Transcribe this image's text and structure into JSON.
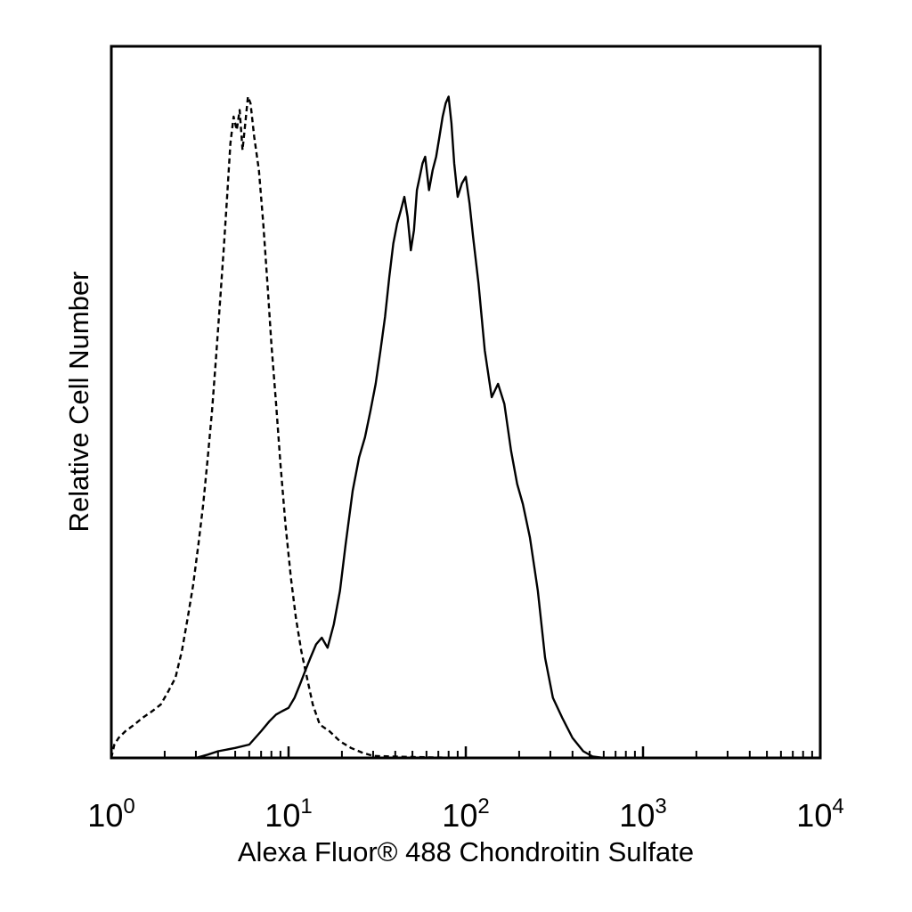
{
  "chart_data": {
    "type": "line",
    "title": "",
    "xlabel": "Alexa Fluor® 488 Chondroitin Sulfate",
    "ylabel": "Relative Cell Number",
    "x_scale": "log",
    "xlim": [
      1,
      10000
    ],
    "ylim": [
      0,
      100
    ],
    "grid": false,
    "legend": "none",
    "x_ticks": [
      {
        "value": 1,
        "base": "10",
        "exp": "0"
      },
      {
        "value": 10,
        "base": "10",
        "exp": "1"
      },
      {
        "value": 100,
        "base": "10",
        "exp": "2"
      },
      {
        "value": 1000,
        "base": "10",
        "exp": "3"
      },
      {
        "value": 10000,
        "base": "10",
        "exp": "4"
      }
    ],
    "series": [
      {
        "style": "dashed",
        "color": "#000000",
        "x": [
          1.0,
          1.04,
          1.1,
          1.2,
          1.35,
          1.5,
          1.7,
          1.9,
          2.1,
          2.3,
          2.5,
          2.7,
          2.9,
          3.1,
          3.3,
          3.5,
          3.7,
          3.9,
          4.1,
          4.3,
          4.5,
          4.7,
          4.9,
          5.1,
          5.3,
          5.5,
          5.7,
          5.9,
          6.1,
          6.4,
          6.8,
          7.2,
          7.6,
          8.0,
          8.5,
          9.0,
          9.6,
          10.3,
          11.0,
          11.8,
          12.7,
          13.7,
          15.0,
          17.0,
          19.5,
          22.5,
          26.0,
          30.0,
          40.0,
          60.0,
          100.0,
          300.0,
          1000.0,
          3000.0,
          10000.0
        ],
        "y": [
          0,
          2,
          3,
          4,
          5,
          6,
          7,
          8,
          10,
          12,
          16,
          21,
          26,
          32,
          38,
          45,
          52,
          60,
          68,
          76,
          84,
          92,
          96,
          94,
          97,
          91,
          95,
          99,
          98,
          93,
          88,
          80,
          71,
          62,
          53,
          44,
          35,
          27,
          21,
          16,
          12,
          8,
          5,
          4,
          2.5,
          1.5,
          0.8,
          0.3,
          0.2,
          0.1,
          0,
          0,
          0,
          0,
          0
        ]
      },
      {
        "style": "solid",
        "color": "#000000",
        "x": [
          1.0,
          3.0,
          3.5,
          4.0,
          5.0,
          6.0,
          7.0,
          7.8,
          8.5,
          9.2,
          10.0,
          10.8,
          11.6,
          12.4,
          13.3,
          14.3,
          15.4,
          16.6,
          18.0,
          19.5,
          21.0,
          23.0,
          25.0,
          27.0,
          29.0,
          31.0,
          33.0,
          35.0,
          37.0,
          39.0,
          41.0,
          43.0,
          45.0,
          47.0,
          49.0,
          51.0,
          53.0,
          55.0,
          57.0,
          59.0,
          62.0,
          65.0,
          68.0,
          71.0,
          74.0,
          77.0,
          80.0,
          83.0,
          86.0,
          90.0,
          95.0,
          100.0,
          105.0,
          110.0,
          118.0,
          128.0,
          140.0,
          152.0,
          165.0,
          180.0,
          195.0,
          210.0,
          230.0,
          255.0,
          280.0,
          310.0,
          350.0,
          400.0,
          460.0,
          520.0,
          600.0,
          1000.0,
          3000.0,
          10000.0
        ],
        "y": [
          0,
          0,
          0.5,
          1,
          1.5,
          2,
          4,
          5.5,
          6.5,
          7,
          7.5,
          9,
          11,
          13,
          15,
          17,
          18,
          16.5,
          20,
          25,
          32,
          40,
          45,
          48,
          52,
          56,
          61,
          66,
          72,
          77,
          80,
          82,
          84,
          81,
          76,
          79,
          85,
          87,
          89,
          90,
          85,
          88,
          90,
          93,
          96,
          98,
          99,
          95,
          89,
          84,
          86,
          87,
          83,
          78,
          71,
          61,
          54,
          56,
          53,
          46,
          41,
          38,
          33,
          25,
          15,
          9,
          6,
          3,
          1,
          0.2,
          0,
          0,
          0,
          0
        ]
      }
    ]
  }
}
